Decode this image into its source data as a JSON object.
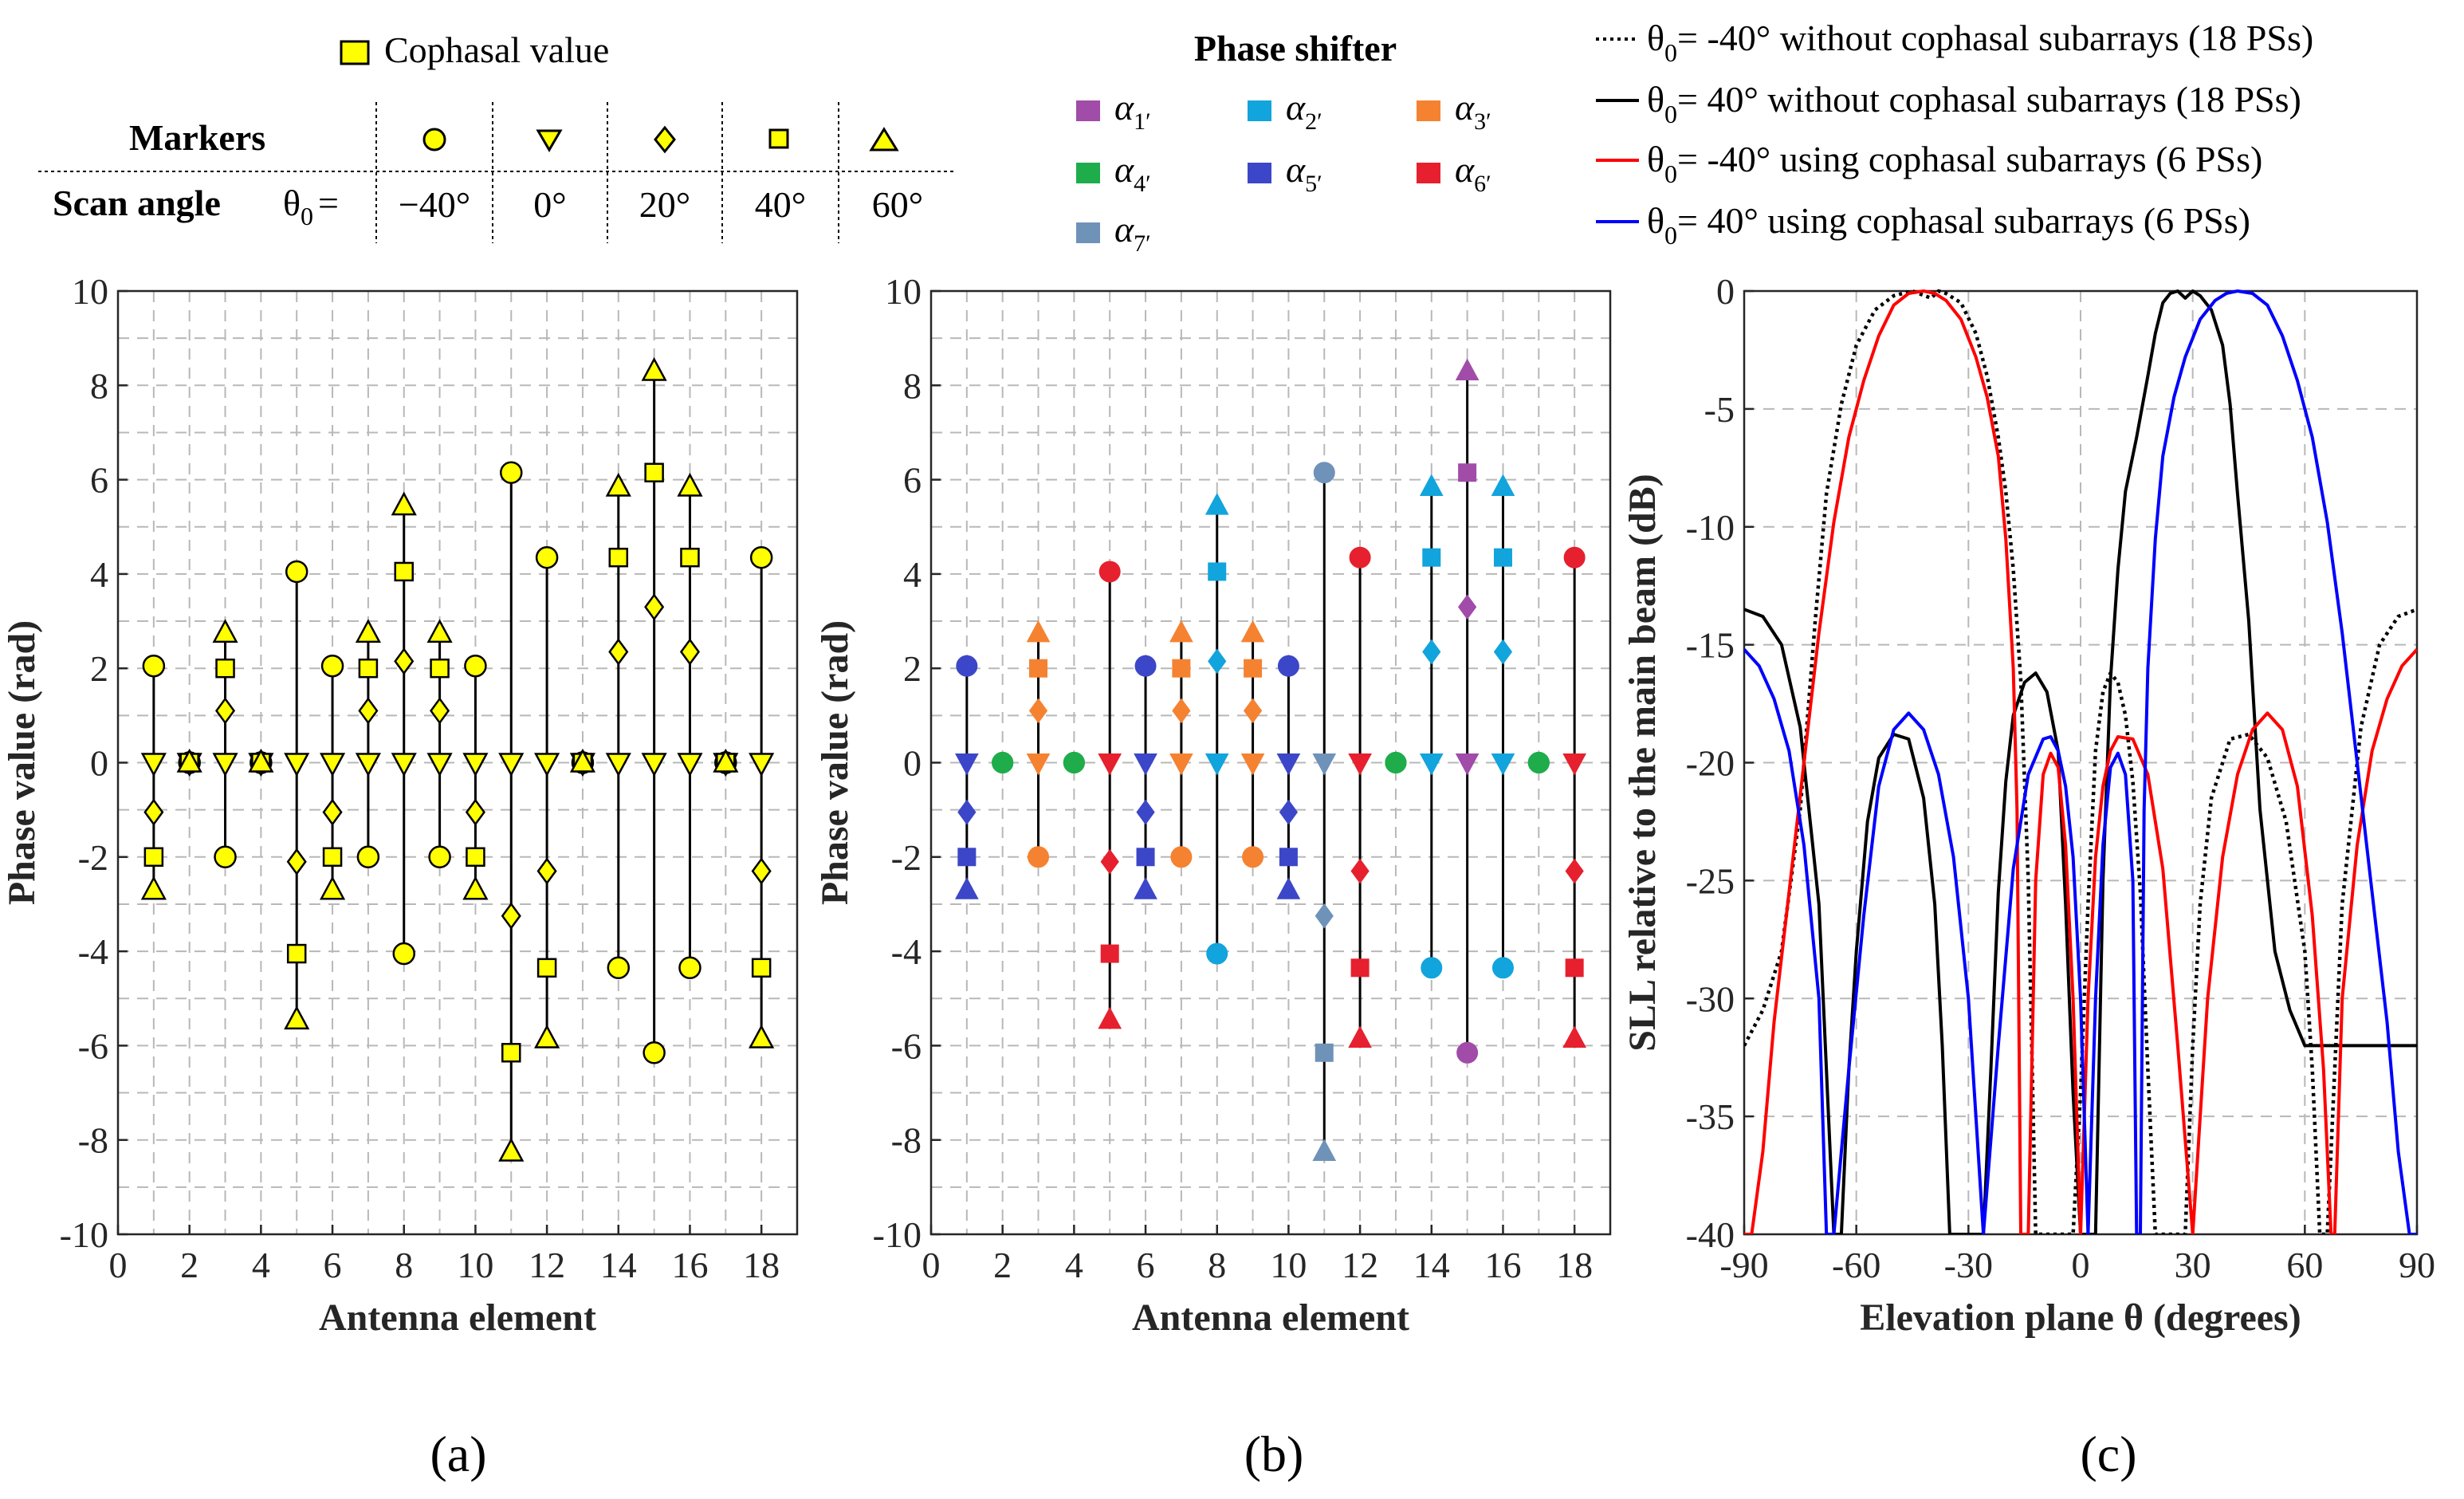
{
  "colors": {
    "cophasal_marker": "#ffff00",
    "stem": "#000000",
    "grid": "#b8b8b8",
    "alpha1": "#a04ca8",
    "alpha2": "#12a4dc",
    "alpha3": "#f58231",
    "alpha4": "#1fad4b",
    "alpha5": "#3c46c8",
    "alpha6": "#e6202e",
    "alpha7": "#6f92b9",
    "line_black": "#000000",
    "line_red": "#ff0000",
    "line_blue": "#0000ff"
  },
  "marker_table": {
    "cophasal_label": "Cophasal value",
    "markers_label": "Markers",
    "scan_angle_label": "Scan angle",
    "theta_label": "θ",
    "theta_sub": "0",
    "theta_eq": "=",
    "angles": [
      "−40°",
      "0°",
      "20°",
      "40°",
      "60°"
    ],
    "marker_shapes": [
      "circle-marker-icon",
      "triangle-down-marker-icon",
      "diamond-marker-icon",
      "square-marker-icon",
      "triangle-up-marker-icon"
    ]
  },
  "phase_shifter_legend": {
    "title": "Phase shifter",
    "items": [
      {
        "symbol": "α",
        "sub": "1′",
        "color_key": "alpha1"
      },
      {
        "symbol": "α",
        "sub": "2′",
        "color_key": "alpha2"
      },
      {
        "symbol": "α",
        "sub": "3′",
        "color_key": "alpha3"
      },
      {
        "symbol": "α",
        "sub": "4′",
        "color_key": "alpha4"
      },
      {
        "symbol": "α",
        "sub": "5′",
        "color_key": "alpha5"
      },
      {
        "symbol": "α",
        "sub": "6′",
        "color_key": "alpha6"
      },
      {
        "symbol": "α",
        "sub": "7′",
        "color_key": "alpha7"
      }
    ]
  },
  "line_legend": {
    "items": [
      {
        "theta": "θ",
        "sub": "0",
        "text": "= -40° without cophasal subarrays (18 PSs)",
        "color_key": "line_black",
        "dotted": true
      },
      {
        "theta": "θ",
        "sub": "0",
        "text": "= 40°  without cophasal subarrays (18 PSs)",
        "color_key": "line_black",
        "dotted": false
      },
      {
        "theta": "θ",
        "sub": "0",
        "text": "= -40° using cophasal subarrays (6 PSs)",
        "color_key": "line_red",
        "dotted": false
      },
      {
        "theta": "θ",
        "sub": "0",
        "text": "= 40°  using cophasal subarrays (6 PSs)",
        "color_key": "line_blue",
        "dotted": false
      }
    ]
  },
  "panel_labels": [
    "(a)",
    "(b)",
    "(c)"
  ],
  "chart_data": [
    {
      "type": "scatter",
      "panel": "(a)",
      "xlabel": "Antenna element",
      "ylabel": "Phase value (rad)",
      "xlim": [
        0,
        19
      ],
      "ylim": [
        -10,
        10
      ],
      "xticks": [
        0,
        2,
        4,
        6,
        8,
        10,
        12,
        14,
        16,
        18
      ],
      "yticks": [
        -10,
        -8,
        -6,
        -4,
        -2,
        0,
        2,
        4,
        6,
        8,
        10
      ],
      "grid": true,
      "scan_angles": [
        "-40°",
        "0°",
        "20°",
        "40°",
        "60°"
      ],
      "elements": [
        1,
        2,
        3,
        4,
        5,
        6,
        7,
        8,
        9,
        10,
        11,
        12,
        13,
        14,
        15,
        16,
        17,
        18
      ],
      "values": {
        "-40": [
          2.05,
          0,
          -2.0,
          0,
          4.05,
          2.05,
          -2.0,
          -4.05,
          -2.0,
          2.05,
          6.15,
          4.35,
          0,
          -4.35,
          -6.15,
          -4.35,
          0,
          4.35
        ],
        "0": [
          0,
          0,
          0,
          0,
          0,
          0,
          0,
          0,
          0,
          0,
          0,
          0,
          0,
          0,
          0,
          0,
          0,
          0
        ],
        "20": [
          -1.05,
          0,
          1.1,
          0,
          -2.1,
          -1.05,
          1.1,
          2.15,
          1.1,
          -1.05,
          -3.25,
          -2.3,
          0,
          2.35,
          3.3,
          2.35,
          0,
          -2.3
        ],
        "40": [
          -2.0,
          0,
          2.0,
          0,
          -4.05,
          -2.0,
          2.0,
          4.05,
          2.0,
          -2.0,
          -6.15,
          -4.35,
          0,
          4.35,
          6.15,
          4.35,
          0,
          -4.35
        ],
        "60": [
          -2.7,
          0,
          2.75,
          0,
          -5.45,
          -2.7,
          2.75,
          5.45,
          2.75,
          -2.7,
          -8.25,
          -5.85,
          0,
          5.85,
          8.3,
          5.85,
          0,
          -5.85
        ]
      }
    },
    {
      "type": "scatter",
      "panel": "(b)",
      "xlabel": "Antenna element",
      "ylabel": "Phase value (rad)",
      "xlim": [
        0,
        19
      ],
      "ylim": [
        -10,
        10
      ],
      "xticks": [
        0,
        2,
        4,
        6,
        8,
        10,
        12,
        14,
        16,
        18
      ],
      "yticks": [
        -10,
        -8,
        -6,
        -4,
        -2,
        0,
        2,
        4,
        6,
        8,
        10
      ],
      "grid": true,
      "element_phase_shifter": [
        "alpha5",
        "alpha4",
        "alpha3",
        "alpha4",
        "alpha6",
        "alpha5",
        "alpha3",
        "alpha2",
        "alpha3",
        "alpha5",
        "alpha7",
        "alpha6",
        "alpha4",
        "alpha2",
        "alpha1",
        "alpha2",
        "alpha4",
        "alpha6"
      ]
    },
    {
      "type": "line",
      "panel": "(c)",
      "xlabel": "Elevation plane θ (degrees)",
      "ylabel": "SLL relative to the main beam (dB)",
      "xlim": [
        -90,
        90
      ],
      "ylim": [
        -40,
        0
      ],
      "xticks": [
        -90,
        -60,
        -30,
        0,
        30,
        60,
        90
      ],
      "yticks": [
        0,
        -5,
        -10,
        -15,
        -20,
        -25,
        -30,
        -35,
        -40
      ],
      "grid": true,
      "series": [
        {
          "name": "θ0= -40° without cophasal subarrays (18 PSs)",
          "color_key": "line_black",
          "dotted": true,
          "x": [
            -90,
            -85,
            -80,
            -75,
            -71,
            -68,
            -64,
            -60,
            -55,
            -50,
            -45,
            -40,
            -38,
            -36,
            -32,
            -28,
            -25,
            -22,
            -20,
            -18,
            -16,
            -14,
            -12,
            -10,
            -8,
            -6,
            -4,
            -2,
            0,
            2,
            4,
            6,
            8,
            10,
            12,
            14,
            16,
            18,
            20,
            22,
            24,
            26,
            28,
            30,
            32,
            35,
            40,
            45,
            50,
            55,
            60,
            62,
            64,
            66,
            70,
            75,
            80,
            85,
            90
          ],
          "y": [
            -32.0,
            -30.5,
            -28.0,
            -22.0,
            -14.0,
            -8.6,
            -4.8,
            -2.3,
            -0.8,
            -0.2,
            0,
            -0.3,
            0.0,
            -0.1,
            -0.5,
            -1.8,
            -3.6,
            -6.2,
            -8.5,
            -11.8,
            -16.5,
            -25.0,
            -40.0,
            -40.0,
            -40.0,
            -40.0,
            -40.0,
            -40.0,
            -34.0,
            -26.0,
            -19.5,
            -17.0,
            -16.2,
            -16.6,
            -18.0,
            -20.8,
            -25.5,
            -33.0,
            -40.0,
            -40.0,
            -40.0,
            -40.0,
            -40.0,
            -32.0,
            -26.0,
            -21.5,
            -19.0,
            -18.8,
            -19.8,
            -22.5,
            -28.0,
            -33.0,
            -40.0,
            -40.0,
            -26.0,
            -18.5,
            -15.0,
            -13.8,
            -13.5
          ]
        },
        {
          "name": "θ0= 40° without cophasal subarrays (18 PSs)",
          "color_key": "line_black",
          "dotted": false,
          "x": [
            -90,
            -85,
            -80,
            -75,
            -70,
            -66,
            -64,
            -62,
            -60,
            -57,
            -54,
            -50,
            -46,
            -42,
            -39,
            -37,
            -35,
            -32,
            -30,
            -28,
            -26,
            -24,
            -22,
            -20,
            -18,
            -15,
            -12,
            -9,
            -6,
            -4,
            -2,
            0,
            2,
            4,
            6,
            8,
            10,
            12,
            15,
            18,
            20,
            22,
            24,
            26,
            28,
            30,
            32,
            35,
            38,
            40,
            42,
            45,
            48,
            52,
            56,
            60,
            64,
            68,
            71,
            75,
            80,
            85,
            90
          ],
          "y": [
            -13.5,
            -13.8,
            -15.0,
            -18.5,
            -26.0,
            -40.0,
            -40.0,
            -33.0,
            -28.0,
            -22.5,
            -19.8,
            -18.8,
            -19.0,
            -21.5,
            -26.0,
            -32.0,
            -40.0,
            -40.0,
            -40.0,
            -40.0,
            -40.0,
            -33.0,
            -25.5,
            -20.8,
            -18.0,
            -16.6,
            -16.2,
            -17.0,
            -19.5,
            -26.0,
            -34.0,
            -40.0,
            -40.0,
            -40.0,
            -25.0,
            -16.5,
            -11.8,
            -8.5,
            -6.2,
            -3.6,
            -1.8,
            -0.5,
            -0.1,
            0.0,
            -0.3,
            0,
            -0.2,
            -0.8,
            -2.3,
            -4.8,
            -8.6,
            -14.0,
            -22.0,
            -28.0,
            -30.5,
            -32.0,
            -32.0,
            -32.0,
            -32.0,
            -32.0,
            -32.0,
            -32.0,
            -32.0
          ]
        },
        {
          "name": "θ0= -40° using cophasal subarrays (6 PSs)",
          "color_key": "line_red",
          "dotted": false,
          "x": [
            -90,
            -88,
            -85,
            -82,
            -78,
            -74,
            -70,
            -66,
            -62,
            -58,
            -54,
            -50,
            -46,
            -42,
            -39,
            -36,
            -32,
            -28,
            -25,
            -22,
            -20,
            -18,
            -17,
            -16,
            -14,
            -12,
            -10,
            -8,
            -6,
            -4,
            -2,
            0,
            2,
            4,
            6,
            8,
            10,
            14,
            18,
            22,
            26,
            30,
            34,
            38,
            42,
            46,
            50,
            54,
            58,
            62,
            65,
            67,
            68,
            70,
            74,
            78,
            82,
            86,
            90
          ],
          "y": [
            -40.0,
            -40.0,
            -36.5,
            -31.0,
            -25.5,
            -20.0,
            -14.5,
            -9.8,
            -6.2,
            -3.8,
            -1.9,
            -0.6,
            -0.1,
            0.0,
            -0.1,
            -0.4,
            -1.2,
            -2.8,
            -4.5,
            -7.0,
            -10.5,
            -16.0,
            -22.0,
            -40.0,
            -40.0,
            -25.0,
            -20.5,
            -19.6,
            -20.2,
            -23.5,
            -30.0,
            -40.0,
            -30.0,
            -24.0,
            -21.0,
            -19.5,
            -18.9,
            -19.0,
            -20.5,
            -24.5,
            -32.0,
            -40.0,
            -30.0,
            -24.0,
            -20.5,
            -18.6,
            -17.9,
            -18.6,
            -21.0,
            -26.5,
            -33.0,
            -40.0,
            -40.0,
            -30.0,
            -23.5,
            -19.5,
            -17.3,
            -15.9,
            -15.2
          ]
        },
        {
          "name": "θ0= 40° using cophasal subarrays (6 PSs)",
          "color_key": "line_blue",
          "dotted": false,
          "x": [
            -90,
            -86,
            -82,
            -78,
            -74,
            -70,
            -68,
            -66,
            -62,
            -58,
            -54,
            -50,
            -46,
            -42,
            -38,
            -34,
            -30,
            -26,
            -22,
            -18,
            -14,
            -10,
            -8,
            -6,
            -4,
            -2,
            0,
            2,
            4,
            6,
            8,
            10,
            12,
            14,
            15,
            16,
            17,
            18,
            20,
            22,
            25,
            28,
            32,
            36,
            39,
            42,
            46,
            50,
            54,
            58,
            62,
            66,
            70,
            74,
            78,
            82,
            85,
            88,
            90
          ],
          "y": [
            -15.2,
            -15.9,
            -17.3,
            -19.5,
            -23.5,
            -30.0,
            -40.0,
            -40.0,
            -33.0,
            -26.5,
            -21.0,
            -18.6,
            -17.9,
            -18.6,
            -20.5,
            -24.0,
            -30.0,
            -40.0,
            -32.0,
            -24.5,
            -20.5,
            -19.0,
            -18.9,
            -19.5,
            -21.0,
            -24.0,
            -30.0,
            -40.0,
            -30.0,
            -23.5,
            -20.2,
            -19.6,
            -20.5,
            -25.0,
            -40.0,
            -40.0,
            -22.0,
            -16.0,
            -10.5,
            -7.0,
            -4.5,
            -2.8,
            -1.2,
            -0.4,
            -0.1,
            0.0,
            -0.1,
            -0.6,
            -1.9,
            -3.8,
            -6.2,
            -9.8,
            -14.5,
            -20.0,
            -25.5,
            -31.0,
            -36.5,
            -40.0,
            -40.0
          ]
        }
      ]
    }
  ]
}
